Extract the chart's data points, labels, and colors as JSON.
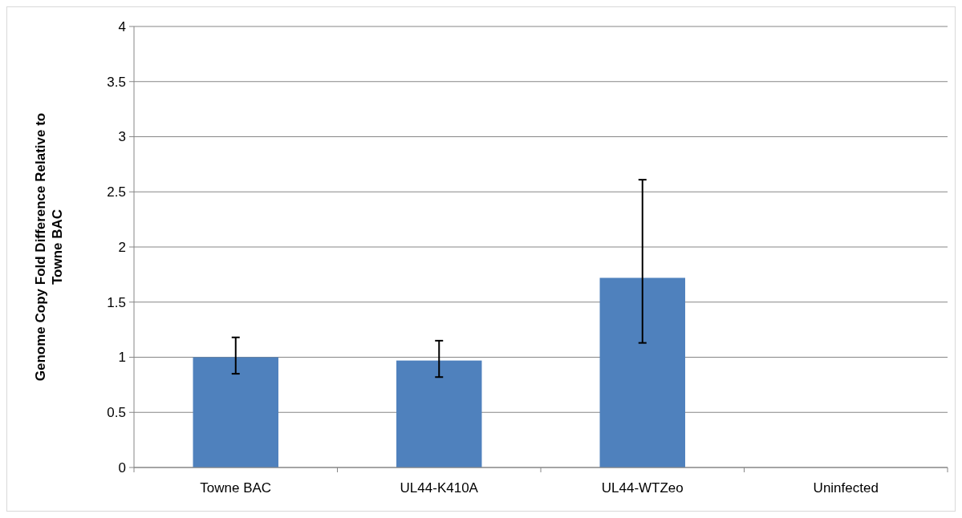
{
  "chart_data": {
    "type": "bar",
    "ylabel": "Genome Copy Fold Difference Relative to Towne BAC",
    "categories": [
      "Towne BAC",
      "UL44-K410A",
      "UL44-WTZeo",
      "Uninfected"
    ],
    "values": [
      1.0,
      0.97,
      1.72,
      0
    ],
    "errors": [
      [
        0.85,
        1.18
      ],
      [
        0.82,
        1.15
      ],
      [
        1.13,
        2.61
      ],
      null
    ],
    "color": "#4f81bd",
    "ylim": [
      0,
      4
    ],
    "yticks": [
      0,
      0.5,
      1,
      1.5,
      2,
      2.5,
      3,
      3.5,
      4
    ],
    "grid": "y"
  }
}
